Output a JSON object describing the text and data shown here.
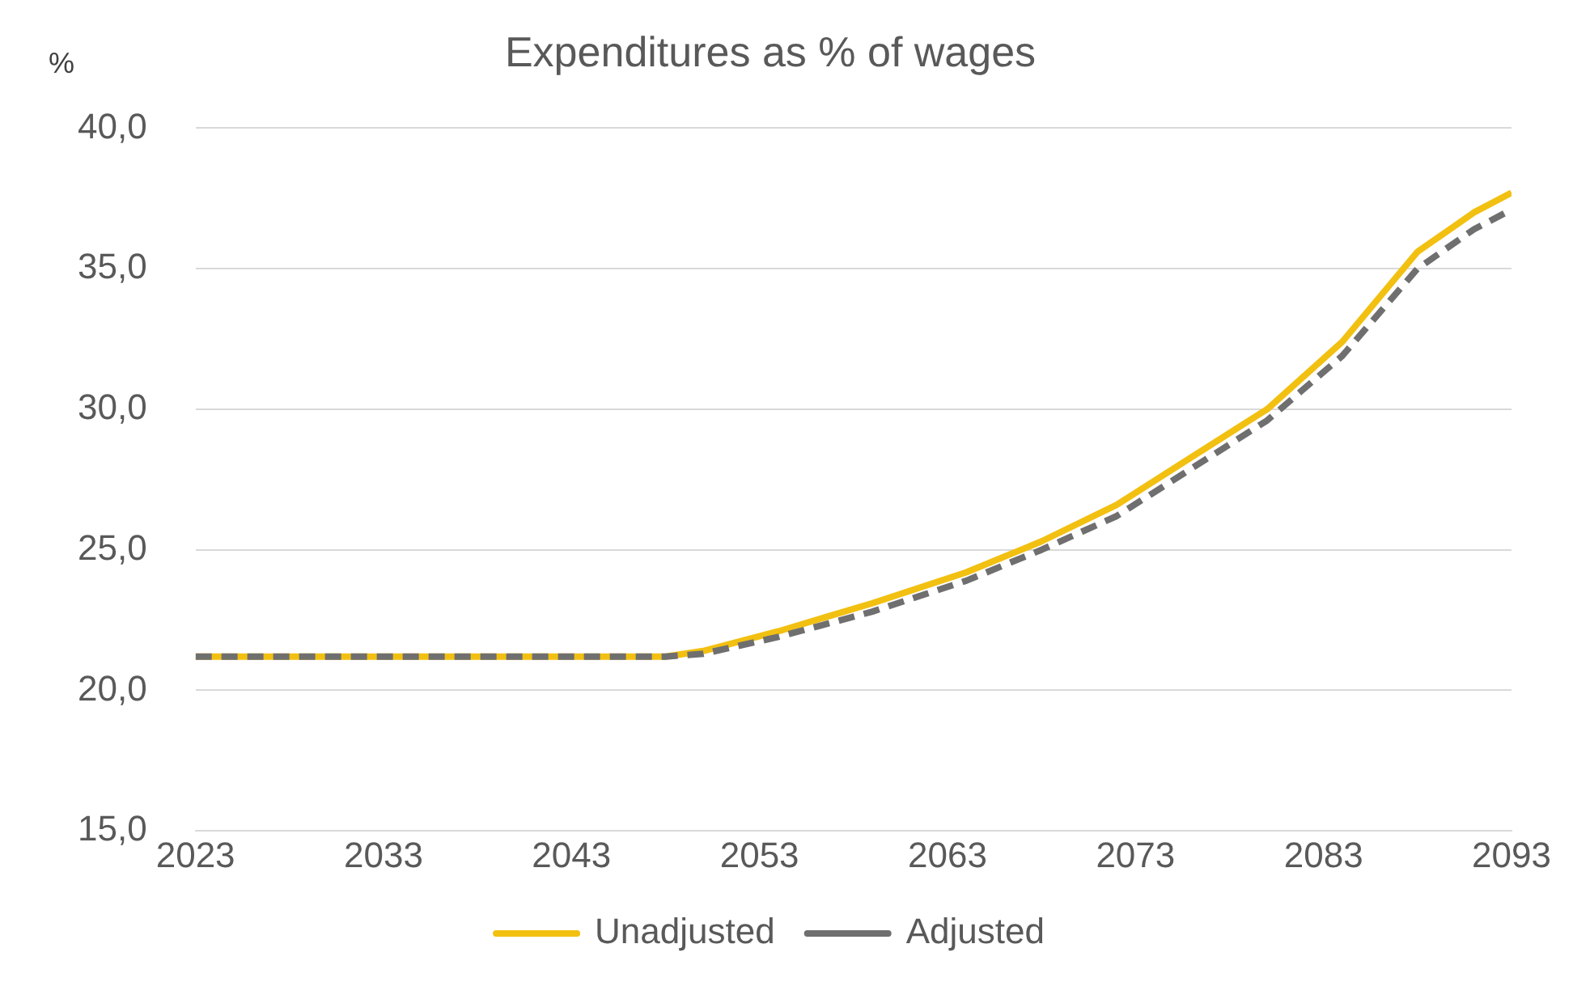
{
  "chart_data": {
    "type": "line",
    "title": "Expenditures as % of wages",
    "ylabel": "%",
    "x": [
      2023,
      2048,
      2050,
      2054,
      2059,
      2064,
      2068,
      2072,
      2076,
      2080,
      2084,
      2088,
      2091,
      2093
    ],
    "series": [
      {
        "name": "Unadjusted",
        "color": "#f2c011",
        "line_style": "solid",
        "values": [
          21.2,
          21.2,
          21.4,
          22.1,
          23.1,
          24.2,
          25.3,
          26.6,
          28.3,
          30.0,
          32.4,
          35.6,
          37.0,
          37.7
        ]
      },
      {
        "name": "Adjusted",
        "color": "#6f6f6f",
        "line_style": "dashed",
        "values": [
          21.2,
          21.2,
          21.3,
          21.9,
          22.8,
          23.9,
          25.0,
          26.2,
          27.9,
          29.6,
          31.9,
          35.0,
          36.4,
          37.1
        ]
      }
    ],
    "xlim": [
      2023,
      2093
    ],
    "xticks": [
      2023,
      2033,
      2043,
      2053,
      2063,
      2073,
      2083,
      2093
    ],
    "ylim": [
      15,
      40
    ],
    "yticks": [
      {
        "value": 15,
        "label": "15,0"
      },
      {
        "value": 20,
        "label": "20,0"
      },
      {
        "value": 25,
        "label": "25,0"
      },
      {
        "value": 30,
        "label": "30,0"
      },
      {
        "value": 35,
        "label": "35,0"
      },
      {
        "value": 40,
        "label": "40,0"
      }
    ],
    "grid": "y",
    "legend": "bottom",
    "marker": "none"
  }
}
